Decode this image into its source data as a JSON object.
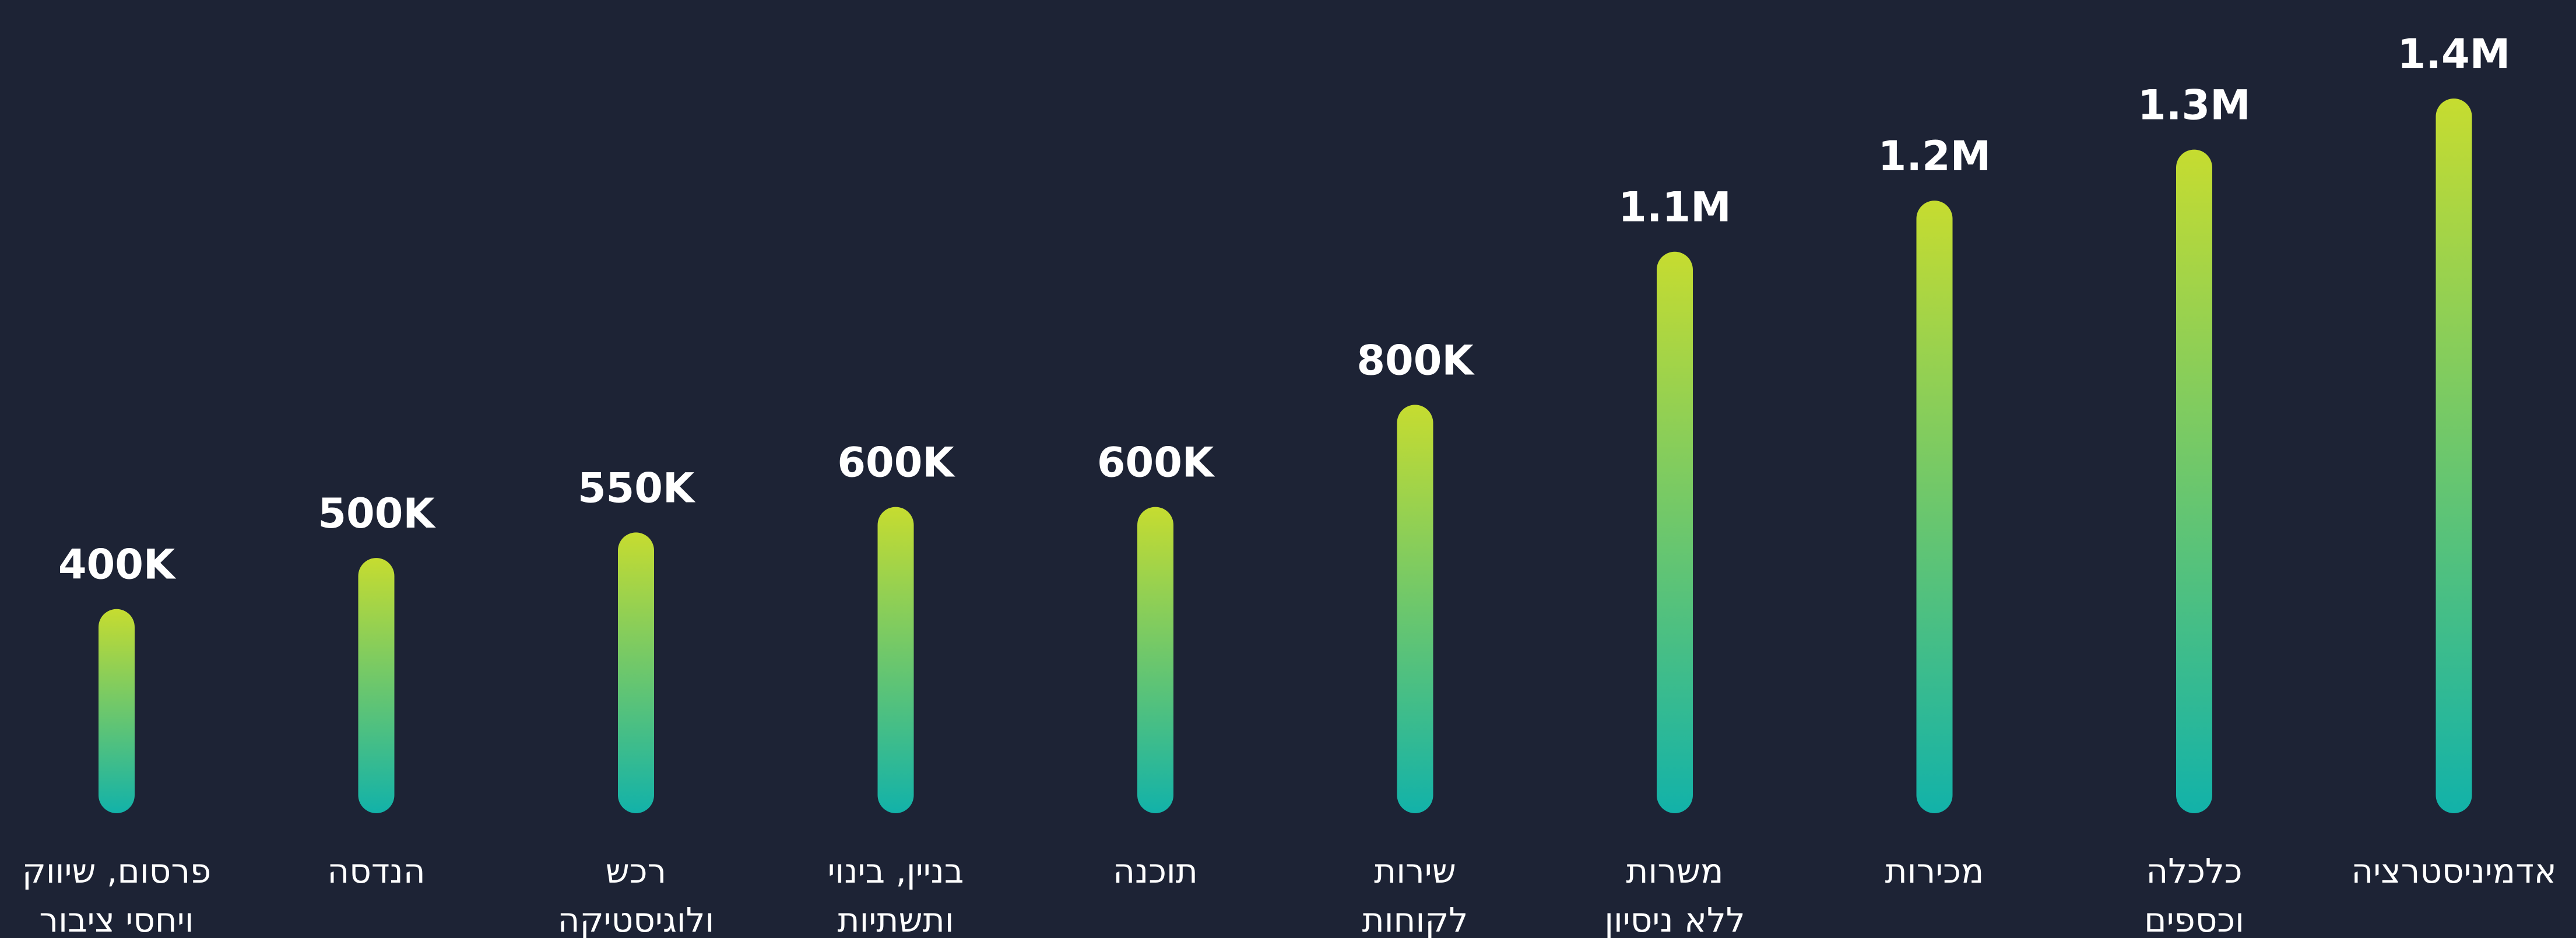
{
  "chart_data": {
    "type": "bar",
    "categories": [
      "פרסום, שיווק\nויחסי ציבור",
      "הנדסה",
      "רכש\nולוגיסטיקה",
      "בניין, בינוי\nותשתיות",
      "תוכנה",
      "שירות\nלקוחות",
      "משרות\nללא ניסיון",
      "מכירות",
      "כלכלה\nוכספים",
      "אדמיניסטרציה"
    ],
    "values": [
      400000,
      500000,
      550000,
      600000,
      600000,
      800000,
      1100000,
      1200000,
      1300000,
      1400000
    ],
    "value_labels": [
      "400K",
      "500K",
      "550K",
      "600K",
      "600K",
      "800K",
      "1.1M",
      "1.2M",
      "1.3M",
      "1.4M"
    ],
    "color_top": "#c6dc30",
    "color_bottom": "#12b2a9"
  }
}
